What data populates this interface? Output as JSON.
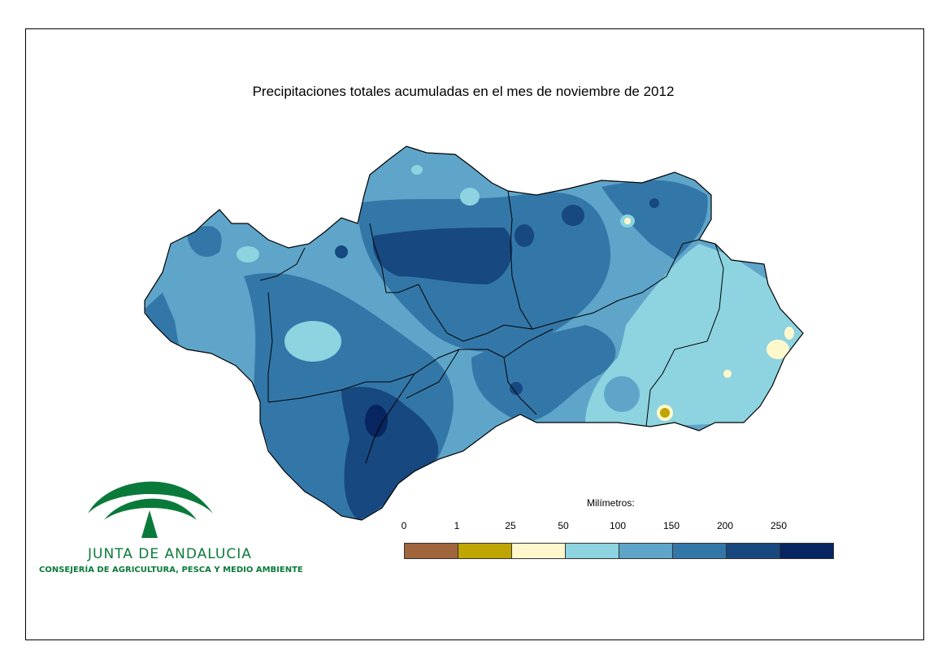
{
  "title": "Precipitaciones totales acumuladas en el mes de noviembre de 2012",
  "legend": {
    "title": "Milímetros:",
    "ticks": [
      "0",
      "1",
      "25",
      "50",
      "100",
      "150",
      "200",
      "250"
    ],
    "colors": [
      "#a0653a",
      "#bfa500",
      "#fff8cc",
      "#8dd3e0",
      "#5ea5c9",
      "#3377a8",
      "#17487f",
      "#072560"
    ]
  },
  "logo": {
    "name": "JUNTA DE ANDALUCIA",
    "subtitle": "CONSEJERÍA DE AGRICULTURA, PESCA Y MEDIO AMBIENTE",
    "color": "#0a7a3a"
  }
}
